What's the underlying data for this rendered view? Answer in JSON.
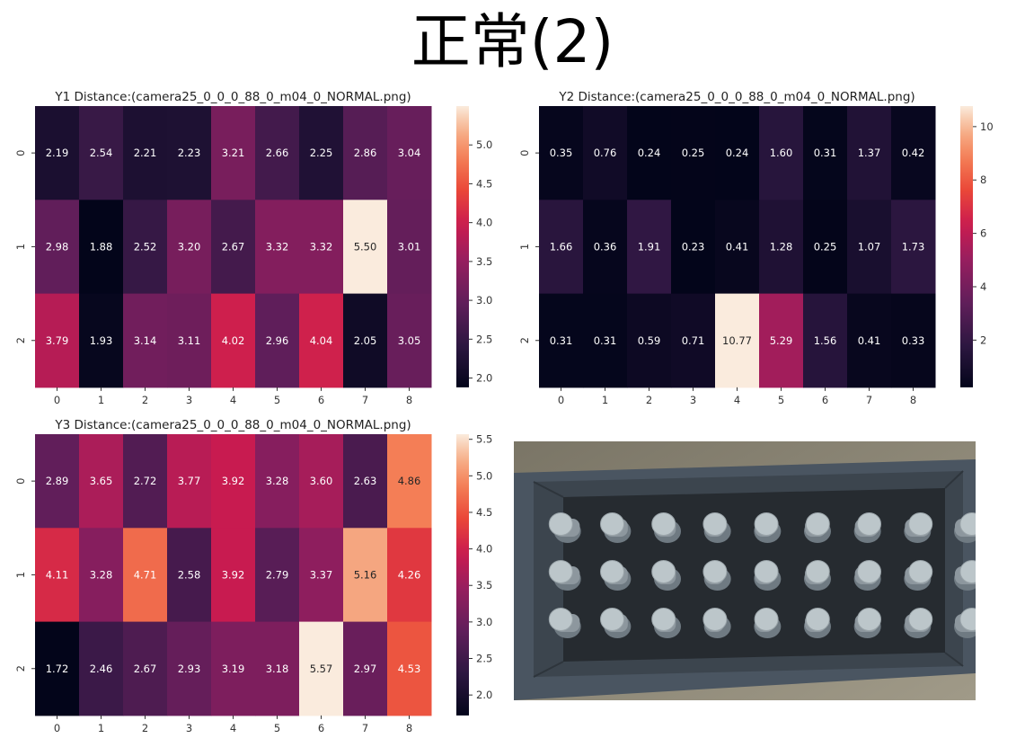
{
  "page": {
    "title": "正常(2)"
  },
  "photo": {
    "description_icon": "camera-image",
    "rows": 3,
    "cols": 9
  },
  "chart_data": [
    {
      "type": "heatmap",
      "title": "Y1 Distance:(camera25_0_0_0_88_0_m04_0_NORMAL.png)",
      "x_ticks": [
        "0",
        "1",
        "2",
        "3",
        "4",
        "5",
        "6",
        "7",
        "8"
      ],
      "y_ticks": [
        "0",
        "1",
        "2"
      ],
      "values": [
        [
          2.19,
          2.54,
          2.21,
          2.23,
          3.21,
          2.66,
          2.25,
          2.86,
          3.04
        ],
        [
          2.98,
          1.88,
          2.52,
          3.2,
          2.67,
          3.32,
          3.32,
          5.5,
          3.01
        ],
        [
          3.79,
          1.93,
          3.14,
          3.11,
          4.02,
          2.96,
          4.04,
          2.05,
          3.05
        ]
      ],
      "vmin": 1.88,
      "vmax": 5.5,
      "colorbar_ticks": [
        2.0,
        2.5,
        3.0,
        3.5,
        4.0,
        4.5,
        5.0
      ],
      "colorbar_labels": [
        "2.0",
        "2.5",
        "3.0",
        "3.5",
        "4.0",
        "4.5",
        "5.0"
      ],
      "colormap": "rocket"
    },
    {
      "type": "heatmap",
      "title": "Y2 Distance:(camera25_0_0_0_88_0_m04_0_NORMAL.png)",
      "x_ticks": [
        "0",
        "1",
        "2",
        "3",
        "4",
        "5",
        "6",
        "7",
        "8"
      ],
      "y_ticks": [
        "0",
        "1",
        "2"
      ],
      "values": [
        [
          0.35,
          0.76,
          0.24,
          0.25,
          0.24,
          1.6,
          0.31,
          1.37,
          0.42
        ],
        [
          1.66,
          0.36,
          1.91,
          0.23,
          0.41,
          1.28,
          0.25,
          1.07,
          1.73
        ],
        [
          0.31,
          0.31,
          0.59,
          0.71,
          10.77,
          5.29,
          1.56,
          0.41,
          0.33
        ]
      ],
      "vmin": 0.23,
      "vmax": 10.77,
      "colorbar_ticks": [
        2,
        4,
        6,
        8,
        10
      ],
      "colorbar_labels": [
        "2",
        "4",
        "6",
        "8",
        "10"
      ],
      "colormap": "rocket"
    },
    {
      "type": "heatmap",
      "title": "Y3 Distance:(camera25_0_0_0_88_0_m04_0_NORMAL.png)",
      "x_ticks": [
        "0",
        "1",
        "2",
        "3",
        "4",
        "5",
        "6",
        "7",
        "8"
      ],
      "y_ticks": [
        "0",
        "1",
        "2"
      ],
      "values": [
        [
          2.89,
          3.65,
          2.72,
          3.77,
          3.92,
          3.28,
          3.6,
          2.63,
          4.86
        ],
        [
          4.11,
          3.28,
          4.71,
          2.58,
          3.92,
          2.79,
          3.37,
          5.16,
          4.26
        ],
        [
          1.72,
          2.46,
          2.67,
          2.93,
          3.19,
          3.18,
          5.57,
          2.97,
          4.53
        ]
      ],
      "vmin": 1.72,
      "vmax": 5.57,
      "colorbar_ticks": [
        2.0,
        2.5,
        3.0,
        3.5,
        4.0,
        4.5,
        5.0,
        5.5
      ],
      "colorbar_labels": [
        "2.0",
        "2.5",
        "3.0",
        "3.5",
        "4.0",
        "4.5",
        "5.0",
        "5.5"
      ],
      "colormap": "rocket"
    }
  ]
}
